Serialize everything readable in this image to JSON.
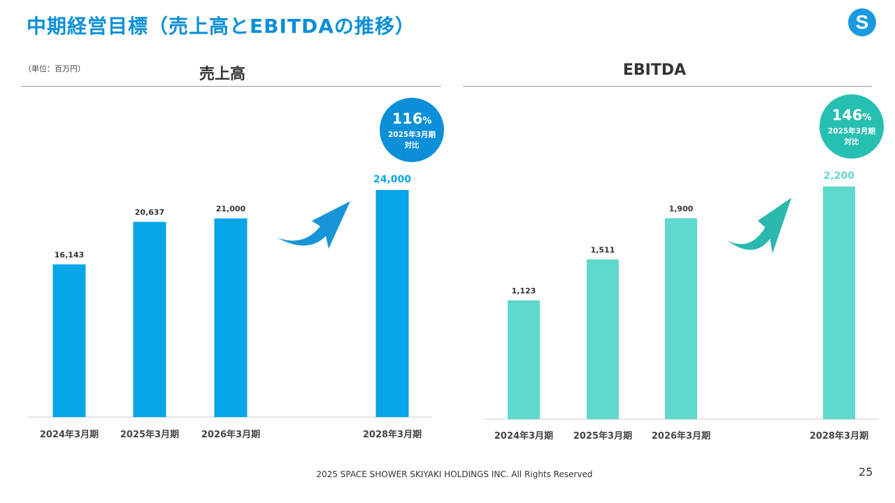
{
  "header": {
    "title": "中期経営目標（売上高とEBITDAの推移）",
    "logo_letter": "S"
  },
  "unit": "（単位：百万円）",
  "colors": {
    "title": "#0b8fd8",
    "sales_bar": "#06a6e8",
    "ebitda_bar": "#5fd8cd",
    "sales_badge": "#0b8fd8",
    "ebitda_badge": "#27bfb1",
    "sales_arrow": "#1895d6",
    "ebitda_arrow": "#2bb8ae"
  },
  "chart_data": [
    {
      "type": "bar",
      "title": "売上高",
      "categories": [
        "2024年3月期",
        "2025年3月期",
        "2026年3月期",
        "2028年3月期"
      ],
      "values": [
        16143,
        20637,
        21000,
        24000
      ],
      "value_labels": [
        "16,143",
        "20,637",
        "21,000",
        "24,000"
      ],
      "ylim": [
        0,
        24000
      ],
      "badge": {
        "percent": "116",
        "suffix": "%",
        "line1": "2025年3月期",
        "line2": "対比"
      }
    },
    {
      "type": "bar",
      "title": "EBITDA",
      "categories": [
        "2024年3月期",
        "2025年3月期",
        "2026年3月期",
        "2028年3月期"
      ],
      "values": [
        1123,
        1511,
        1900,
        2200
      ],
      "value_labels": [
        "1,123",
        "1,511",
        "1,900",
        "2,200"
      ],
      "ylim": [
        0,
        2200
      ],
      "badge": {
        "percent": "146",
        "suffix": "%",
        "line1": "2025年3月期",
        "line2": "対比"
      }
    }
  ],
  "footer": {
    "copyright": "2025 SPACE SHOWER SKIYAKI HOLDINGS INC. All Rights Reserved",
    "page_number": "25"
  }
}
